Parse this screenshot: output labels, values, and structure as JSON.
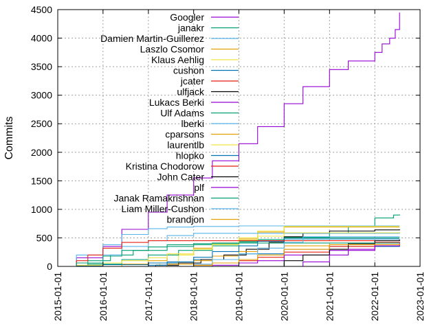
{
  "chart_data": {
    "type": "line",
    "title": "",
    "xlabel": "",
    "ylabel": "Commits",
    "ylim": [
      0,
      4500
    ],
    "xlim": [
      "2015-01-01",
      "2023-01-01"
    ],
    "grid": true,
    "legend_position": "top-left-inside",
    "y_ticks": [
      "0",
      "500",
      "1000",
      "1500",
      "2000",
      "2500",
      "3000",
      "3500",
      "4000",
      "4500"
    ],
    "x_ticks": [
      "2015-01-01",
      "2016-01-01",
      "2017-01-01",
      "2018-01-01",
      "2019-01-01",
      "2020-01-01",
      "2021-01-01",
      "2022-01-01",
      "2023-01-01"
    ],
    "series": [
      {
        "name": "Googler",
        "color": "#9400d3",
        "x": [
          "2015-03-01",
          "2015-06-01",
          "2016-01-01",
          "2016-06-01",
          "2017-01-01",
          "2017-06-01",
          "2018-01-01",
          "2018-06-01",
          "2019-01-01",
          "2019-06-01",
          "2020-01-01",
          "2020-06-01",
          "2021-01-01",
          "2021-06-01",
          "2022-01-01",
          "2022-03-01",
          "2022-05-01",
          "2022-06-15",
          "2022-07-20"
        ],
        "y": [
          0,
          150,
          350,
          650,
          950,
          1250,
          1550,
          1850,
          2150,
          2450,
          2850,
          3150,
          3450,
          3600,
          3750,
          3900,
          4000,
          4150,
          4450
        ]
      },
      {
        "name": "janakr",
        "color": "#009e73",
        "x": [
          "2015-03-01",
          "2015-09-01",
          "2016-03-01",
          "2016-09-01",
          "2017-06-01",
          "2018-01-01",
          "2018-06-01",
          "2019-01-01",
          "2019-06-01",
          "2020-01-01",
          "2021-01-01",
          "2021-06-01",
          "2022-01-01",
          "2022-06-01",
          "2022-07-20"
        ],
        "y": [
          0,
          100,
          200,
          280,
          350,
          380,
          410,
          440,
          470,
          510,
          590,
          700,
          850,
          900,
          910
        ]
      },
      {
        "name": "Damien Martin-Guillerez",
        "color": "#56b4e9",
        "x": [
          "2015-03-01",
          "2015-06-01",
          "2016-01-01",
          "2016-06-01",
          "2017-01-01",
          "2017-06-01",
          "2018-01-01",
          "2019-01-01",
          "2020-01-01",
          "2022-07-20"
        ],
        "y": [
          0,
          200,
          380,
          560,
          660,
          690,
          700,
          710,
          710,
          710
        ]
      },
      {
        "name": "Laszlo Csomor",
        "color": "#e69f00",
        "x": [
          "2015-03-01",
          "2016-01-01",
          "2016-06-01",
          "2017-01-01",
          "2017-06-01",
          "2018-01-01",
          "2018-06-01",
          "2019-01-01",
          "2019-06-01",
          "2020-01-01",
          "2022-07-20"
        ],
        "y": [
          0,
          0,
          40,
          100,
          200,
          320,
          400,
          480,
          600,
          690,
          690
        ]
      },
      {
        "name": "Klaus Aehlig",
        "color": "#f0e442",
        "x": [
          "2015-03-01",
          "2017-01-01",
          "2017-04-01",
          "2017-09-01",
          "2018-01-01",
          "2018-06-01",
          "2019-01-01",
          "2019-06-01",
          "2020-01-01",
          "2022-07-20"
        ],
        "y": [
          0,
          0,
          60,
          200,
          300,
          400,
          500,
          620,
          700,
          700
        ]
      },
      {
        "name": "cushon",
        "color": "#0072b2",
        "x": [
          "2015-03-01",
          "2015-06-01",
          "2016-01-01",
          "2017-01-01",
          "2018-01-01",
          "2019-01-01",
          "2020-01-01",
          "2021-01-01",
          "2022-07-20"
        ],
        "y": [
          0,
          10,
          30,
          60,
          120,
          220,
          300,
          350,
          380
        ]
      },
      {
        "name": "jcater",
        "color": "#e51e10",
        "x": [
          "2015-03-01",
          "2017-06-01",
          "2018-01-01",
          "2018-06-01",
          "2019-01-01",
          "2019-06-01",
          "2020-01-01",
          "2021-01-01",
          "2022-01-01",
          "2022-07-20"
        ],
        "y": [
          0,
          0,
          20,
          60,
          100,
          160,
          250,
          350,
          420,
          430
        ]
      },
      {
        "name": "ulfjack",
        "color": "#000000",
        "x": [
          "2015-03-01",
          "2016-09-01",
          "2017-03-01",
          "2017-09-01",
          "2018-03-01",
          "2018-09-01",
          "2019-03-01",
          "2019-09-01",
          "2020-01-01",
          "2020-06-01",
          "2021-01-01",
          "2022-01-01",
          "2022-07-20"
        ],
        "y": [
          0,
          0,
          20,
          60,
          120,
          200,
          300,
          420,
          520,
          580,
          620,
          640,
          650
        ]
      },
      {
        "name": "Lukacs Berki",
        "color": "#9400d3",
        "x": [
          "2015-03-01",
          "2016-01-01",
          "2017-01-01",
          "2018-01-01",
          "2018-06-01",
          "2019-01-01",
          "2019-06-01",
          "2020-01-01",
          "2021-01-01",
          "2022-01-01",
          "2022-07-20"
        ],
        "y": [
          0,
          0,
          0,
          0,
          20,
          60,
          100,
          200,
          280,
          380,
          420
        ]
      },
      {
        "name": "Ulf Adams",
        "color": "#009e73",
        "x": [
          "2015-03-01",
          "2015-09-01",
          "2016-06-01",
          "2017-01-01",
          "2017-09-01",
          "2018-06-01",
          "2019-01-01",
          "2019-06-01",
          "2020-01-01",
          "2022-07-20"
        ],
        "y": [
          0,
          40,
          120,
          200,
          280,
          360,
          420,
          470,
          500,
          500
        ]
      },
      {
        "name": "lberki",
        "color": "#56b4e9",
        "x": [
          "2015-03-01",
          "2015-06-01",
          "2016-01-01",
          "2016-06-01",
          "2017-01-01",
          "2017-06-01",
          "2018-01-01",
          "2022-07-20"
        ],
        "y": [
          0,
          60,
          200,
          350,
          450,
          540,
          580,
          590
        ]
      },
      {
        "name": "cparsons",
        "color": "#e69f00",
        "x": [
          "2015-03-01",
          "2017-01-01",
          "2017-06-01",
          "2018-01-01",
          "2018-06-01",
          "2019-01-01",
          "2019-06-01",
          "2020-01-01",
          "2021-01-01",
          "2022-07-20"
        ],
        "y": [
          0,
          0,
          40,
          100,
          180,
          260,
          320,
          360,
          380,
          390
        ]
      },
      {
        "name": "laurentlb",
        "color": "#f0e442",
        "x": [
          "2015-03-01",
          "2015-06-01",
          "2016-01-01",
          "2016-06-01",
          "2017-01-01",
          "2017-06-01",
          "2018-01-01",
          "2018-06-01",
          "2019-01-01",
          "2019-06-01",
          "2020-01-01",
          "2022-07-20"
        ],
        "y": [
          0,
          20,
          60,
          100,
          150,
          220,
          300,
          380,
          460,
          530,
          590,
          600
        ]
      },
      {
        "name": "hlopko",
        "color": "#0072b2",
        "x": [
          "2015-03-01",
          "2016-06-01",
          "2017-01-01",
          "2017-06-01",
          "2018-01-01",
          "2018-06-01",
          "2019-01-01",
          "2019-06-01",
          "2020-01-01",
          "2022-07-20"
        ],
        "y": [
          0,
          0,
          20,
          80,
          160,
          260,
          360,
          440,
          480,
          480
        ]
      },
      {
        "name": "Kristina Chodorow",
        "color": "#e51e10",
        "x": [
          "2015-03-01",
          "2015-06-01",
          "2015-09-01",
          "2016-01-01",
          "2016-06-01",
          "2017-01-01",
          "2022-07-20"
        ],
        "y": [
          0,
          100,
          200,
          320,
          420,
          450,
          450
        ]
      },
      {
        "name": "John Cater",
        "color": "#000000",
        "x": [
          "2015-03-01",
          "2019-06-01",
          "2020-01-01",
          "2020-06-01",
          "2021-01-01",
          "2021-06-01",
          "2022-01-01",
          "2022-07-20"
        ],
        "y": [
          0,
          0,
          100,
          200,
          300,
          400,
          450,
          470
        ]
      },
      {
        "name": "plf",
        "color": "#9400d3",
        "x": [
          "2015-03-01",
          "2017-01-01",
          "2018-01-01",
          "2019-01-01",
          "2020-01-01",
          "2020-06-01",
          "2021-01-01",
          "2021-06-01",
          "2022-01-01",
          "2022-07-20"
        ],
        "y": [
          0,
          0,
          0,
          0,
          0,
          80,
          200,
          300,
          360,
          380
        ]
      },
      {
        "name": "Janak Ramakrishnan",
        "color": "#009e73",
        "x": [
          "2015-03-01",
          "2015-06-01",
          "2016-01-01",
          "2016-06-01",
          "2017-01-01",
          "2017-06-01",
          "2018-01-01",
          "2019-01-01",
          "2020-01-01",
          "2022-07-20"
        ],
        "y": [
          0,
          60,
          180,
          280,
          340,
          380,
          400,
          410,
          410,
          410
        ]
      },
      {
        "name": "Liam Miller-Cushon",
        "color": "#56b4e9",
        "x": [
          "2015-03-01",
          "2017-06-01",
          "2018-01-01",
          "2018-06-01",
          "2019-01-01",
          "2019-06-01",
          "2020-01-01",
          "2020-06-01",
          "2022-07-20"
        ],
        "y": [
          0,
          0,
          40,
          120,
          220,
          320,
          420,
          520,
          520
        ]
      },
      {
        "name": "brandjon",
        "color": "#e69f00",
        "x": [
          "2015-03-01",
          "2017-06-01",
          "2018-01-01",
          "2018-06-01",
          "2019-01-01",
          "2019-06-01",
          "2020-01-01",
          "2021-01-01",
          "2022-07-20"
        ],
        "y": [
          0,
          0,
          20,
          60,
          120,
          200,
          300,
          380,
          400
        ]
      }
    ]
  }
}
